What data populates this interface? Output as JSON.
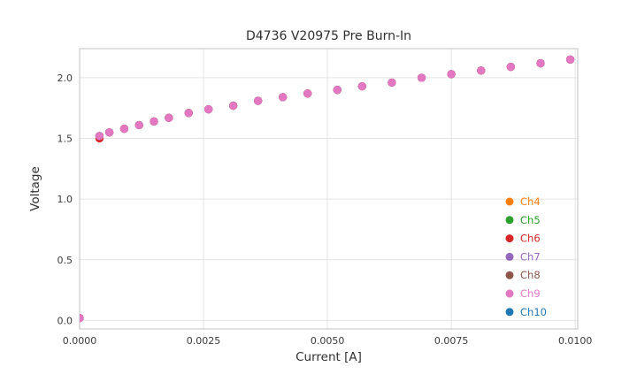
{
  "chart_data": {
    "type": "scatter",
    "title": "D4736 V20975 Pre Burn-In",
    "xlabel": "Current [A]",
    "ylabel": "Voltage",
    "xlim": [
      0,
      0.01005
    ],
    "ylim": [
      -0.07,
      2.24
    ],
    "grid": true,
    "legend_position": "inside right, lower half, no frame",
    "x": [
      0.0,
      0.0004,
      0.0006,
      0.0009,
      0.0012,
      0.0015,
      0.0018,
      0.0022,
      0.0026,
      0.0031,
      0.0036,
      0.0041,
      0.0046,
      0.0052,
      0.0057,
      0.0063,
      0.0069,
      0.0075,
      0.0081,
      0.0087,
      0.0093,
      0.0099
    ],
    "x_ticks": {
      "values": [
        0,
        0.0025,
        0.005,
        0.0075,
        0.01
      ],
      "labels": [
        "0.0000",
        "0.0025",
        "0.0050",
        "0.0075",
        "0.0100"
      ]
    },
    "y_ticks": {
      "values": [
        0,
        0.5,
        1.0,
        1.5,
        2.0
      ],
      "labels": [
        "0.0",
        "0.5",
        "1.0",
        "1.5",
        "2.0"
      ]
    },
    "series": [
      {
        "name": "Ch4",
        "color": "#ff7f0e",
        "values": [
          0.02,
          1.52,
          1.55,
          1.58,
          1.61,
          1.64,
          1.67,
          1.71,
          1.74,
          1.77,
          1.81,
          1.84,
          1.87,
          1.9,
          1.93,
          1.96,
          2.0,
          2.03,
          2.06,
          2.09,
          2.12,
          2.15
        ]
      },
      {
        "name": "Ch5",
        "color": "#2ca02c",
        "values": [
          0.02,
          1.52,
          1.55,
          1.58,
          1.61,
          1.64,
          1.67,
          1.71,
          1.74,
          1.77,
          1.81,
          1.84,
          1.87,
          1.9,
          1.93,
          1.96,
          2.0,
          2.03,
          2.06,
          2.09,
          2.12,
          2.15
        ]
      },
      {
        "name": "Ch6",
        "color": "#d62728",
        "values": [
          0.02,
          1.5,
          1.55,
          1.58,
          1.61,
          1.64,
          1.67,
          1.71,
          1.74,
          1.77,
          1.81,
          1.84,
          1.87,
          1.9,
          1.93,
          1.96,
          2.0,
          2.03,
          2.06,
          2.09,
          2.12,
          2.15
        ]
      },
      {
        "name": "Ch7",
        "color": "#9467bd",
        "values": [
          0.02,
          1.52,
          1.55,
          1.58,
          1.61,
          1.64,
          1.67,
          1.71,
          1.74,
          1.77,
          1.81,
          1.84,
          1.87,
          1.9,
          1.93,
          1.96,
          2.0,
          2.03,
          2.06,
          2.09,
          2.12,
          2.15
        ]
      },
      {
        "name": "Ch8",
        "color": "#8c564b",
        "values": [
          0.02,
          1.52,
          1.55,
          1.58,
          1.61,
          1.64,
          1.67,
          1.71,
          1.74,
          1.77,
          1.81,
          1.84,
          1.87,
          1.9,
          1.93,
          1.96,
          2.0,
          2.03,
          2.06,
          2.09,
          2.12,
          2.15
        ]
      },
      {
        "name": "Ch9",
        "color": "#e377c2",
        "values": [
          0.02,
          1.52,
          1.55,
          1.58,
          1.61,
          1.64,
          1.67,
          1.71,
          1.74,
          1.77,
          1.81,
          1.84,
          1.87,
          1.9,
          1.93,
          1.96,
          2.0,
          2.03,
          2.06,
          2.09,
          2.12,
          2.15
        ]
      },
      {
        "name": "Ch10",
        "color": "#1f77b4",
        "values": [
          0.02,
          1.52,
          1.55,
          1.58,
          1.61,
          1.64,
          1.67,
          1.71,
          1.74,
          1.77,
          1.81,
          1.84,
          1.87,
          1.9,
          1.93,
          1.96,
          2.0,
          2.03,
          2.06,
          2.09,
          2.12,
          2.15
        ]
      }
    ],
    "draw_order": [
      "Ch10",
      "Ch4",
      "Ch5",
      "Ch6",
      "Ch7",
      "Ch8",
      "Ch9"
    ],
    "colors": {
      "grid": "#e4e4e4",
      "border": "#cccccc",
      "tick_label": "#3a3a3a",
      "background": "#ffffff"
    }
  }
}
